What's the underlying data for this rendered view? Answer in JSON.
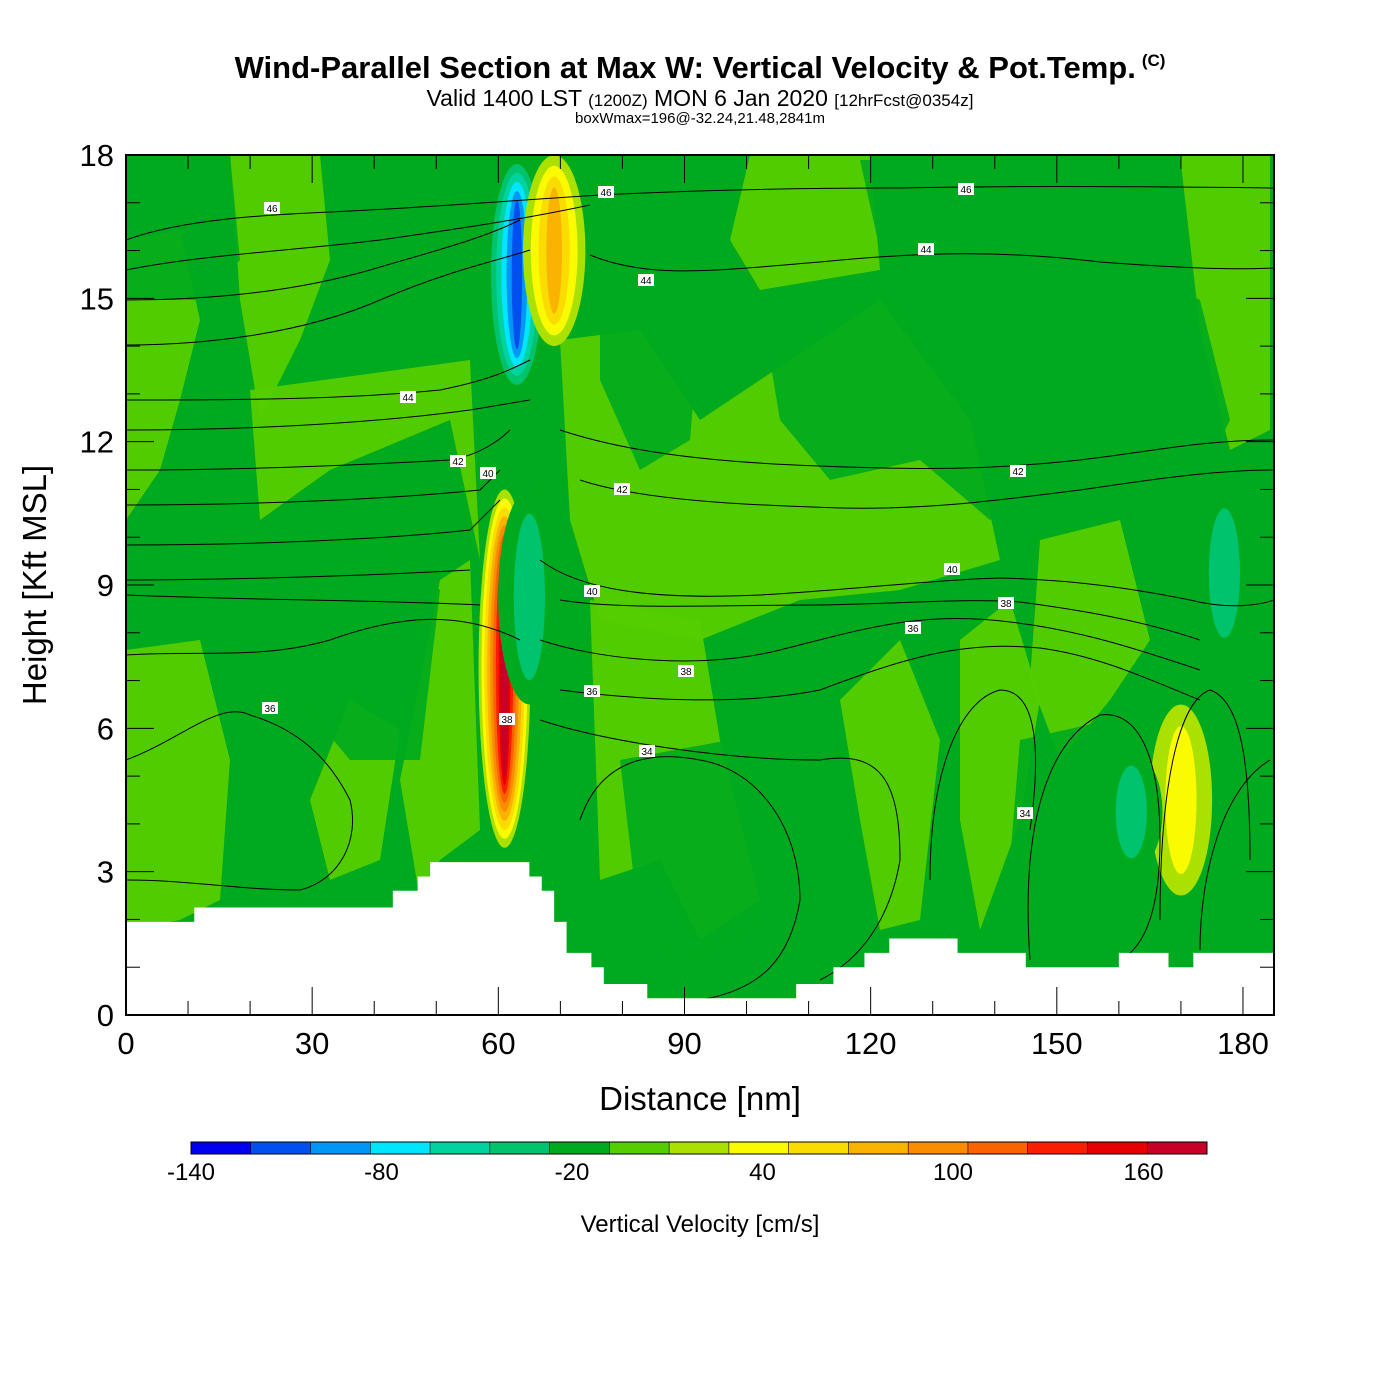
{
  "title": "Wind-Parallel Section at Max W: Vertical Velocity & Pot.Temp.",
  "title_mark": "(C)",
  "subtitle": {
    "main": "Valid 1400 LST",
    "utc": "(1200Z)",
    "date": "MON 6 Jan 2020",
    "forecast": "[12hrFcst@0354z]"
  },
  "subsubtitle": "boxWmax=196@-32.24,21.48,2841m",
  "chart_data": {
    "type": "heatmap",
    "xlabel": "Distance [nm]",
    "ylabel": "Height [Kft MSL]",
    "xlim": [
      0,
      185
    ],
    "ylim": [
      0,
      18
    ],
    "x_ticks": [
      "0",
      "30",
      "60",
      "90",
      "120",
      "150",
      "180"
    ],
    "y_ticks": [
      "0",
      "3",
      "6",
      "9",
      "12",
      "15",
      "18"
    ],
    "colorbar": {
      "label": "Vertical Velocity [cm/s]",
      "tick_labels": [
        "-140",
        "-80",
        "-20",
        "40",
        "100",
        "160"
      ],
      "tick_values": [
        -140,
        -80,
        -20,
        40,
        100,
        160
      ],
      "bounds": [
        -140,
        180
      ],
      "step": 20,
      "colors": [
        "#0000f0",
        "#0050f0",
        "#0096f5",
        "#00e6ff",
        "#00d2a0",
        "#00c36e",
        "#00aa1e",
        "#55cd00",
        "#aae100",
        "#fafa00",
        "#fadc00",
        "#fab400",
        "#fa8c00",
        "#fa6400",
        "#fa1e00",
        "#e60000",
        "#c80028"
      ]
    },
    "background_class_value": -10,
    "features": [
      {
        "kind": "updraft_max",
        "x": 61,
        "y_range": [
          3.5,
          11
        ],
        "w_max": 196
      },
      {
        "kind": "downdraft",
        "x": 63,
        "y_range": [
          13,
          18
        ],
        "w_min": -130
      },
      {
        "kind": "updraft",
        "x": 69,
        "y_range": [
          14,
          18
        ],
        "w_max": 90
      },
      {
        "kind": "downdraft",
        "x": 65,
        "y_range": [
          6.5,
          11
        ],
        "w_min": -50
      },
      {
        "kind": "updraft",
        "x": 170,
        "y_range": [
          2.5,
          6.5
        ],
        "w_max": 50
      },
      {
        "kind": "downdraft",
        "x": 162,
        "y_range": [
          3,
          5.5
        ],
        "w_min": -40
      },
      {
        "kind": "downdraft",
        "x": 177,
        "y_range": [
          7.5,
          11
        ],
        "w_min": -40
      }
    ],
    "theta_contour_labels": [
      "46",
      "46",
      "46",
      "44",
      "44",
      "44",
      "42",
      "42",
      "42",
      "40",
      "40",
      "40",
      "38",
      "38",
      "38",
      "36",
      "36",
      "36",
      "34",
      "34"
    ],
    "terrain_top_kft": [
      {
        "x": [
          0,
          11
        ],
        "h": 1.95
      },
      {
        "x": [
          11,
          43
        ],
        "h": 2.25
      },
      {
        "x": [
          43,
          47
        ],
        "h": 2.6
      },
      {
        "x": [
          47,
          49
        ],
        "h": 2.9
      },
      {
        "x": [
          49,
          52
        ],
        "h": 3.2
      },
      {
        "x": [
          52,
          65
        ],
        "h": 3.2
      },
      {
        "x": [
          65,
          67
        ],
        "h": 2.9
      },
      {
        "x": [
          67,
          69
        ],
        "h": 2.6
      },
      {
        "x": [
          69,
          71
        ],
        "h": 1.95
      },
      {
        "x": [
          71,
          75
        ],
        "h": 1.3
      },
      {
        "x": [
          75,
          77
        ],
        "h": 1.0
      },
      {
        "x": [
          77,
          84
        ],
        "h": 0.65
      },
      {
        "x": [
          84,
          108
        ],
        "h": 0.35
      },
      {
        "x": [
          108,
          114
        ],
        "h": 0.65
      },
      {
        "x": [
          114,
          119
        ],
        "h": 1.0
      },
      {
        "x": [
          119,
          123
        ],
        "h": 1.3
      },
      {
        "x": [
          123,
          134
        ],
        "h": 1.6
      },
      {
        "x": [
          134,
          145
        ],
        "h": 1.3
      },
      {
        "x": [
          145,
          160
        ],
        "h": 1.0
      },
      {
        "x": [
          160,
          168
        ],
        "h": 1.3
      },
      {
        "x": [
          168,
          172
        ],
        "h": 1.0
      },
      {
        "x": [
          172,
          185
        ],
        "h": 1.3
      }
    ]
  }
}
